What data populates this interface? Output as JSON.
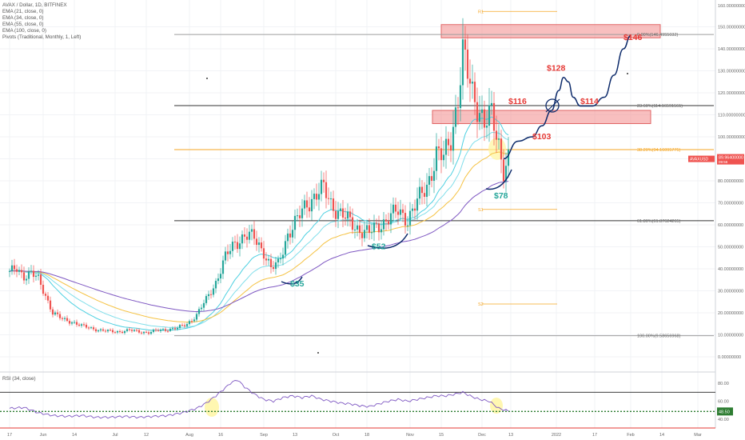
{
  "legend": {
    "title": "AVAX / Dollar, 1D, BITFINEX",
    "indicators": [
      "EMA (21, close, 0)",
      "EMA (34, close, 0)",
      "EMA (55, close, 0)",
      "EMA (100, close, 0)",
      "Pivots (Traditional, Monthly, 1, Left)"
    ]
  },
  "colors": {
    "bull": "#26a69a",
    "bear": "#ef5350",
    "ema21": "#4dd0e1",
    "ema34": "#80deea",
    "ema55": "#f5c242",
    "ema100": "#7e57c2",
    "fib_orange": "#f5a623",
    "fib_dark": "#333333",
    "zone": "#f28b8b",
    "annot_red": "#e53935",
    "annot_green": "#26a69a",
    "path_blue": "#0d2b6b",
    "rsi_line": "#7e57c2",
    "highlight": "#fff59d"
  },
  "chart_data": {
    "type": "candlestick",
    "symbol": "AVAXUSD",
    "y_axis": {
      "range": [
        0,
        160
      ],
      "ticks": [
        {
          "v": 150,
          "label": "150.00000000"
        },
        {
          "v": 140,
          "label": "140.00000000"
        },
        {
          "v": 130,
          "label": "130.00000000"
        },
        {
          "v": 120,
          "label": "120.00000000"
        },
        {
          "v": 110,
          "label": "110.00000000"
        },
        {
          "v": 100,
          "label": "100.00000000"
        },
        {
          "v": 90,
          "label": "90.00000000"
        },
        {
          "v": 80,
          "label": "80.00000000"
        },
        {
          "v": 70,
          "label": "70.00000000"
        },
        {
          "v": 60,
          "label": "60.00000000"
        },
        {
          "v": 50,
          "label": "50.00000000"
        },
        {
          "v": 40,
          "label": "40.00000000"
        },
        {
          "v": 30,
          "label": "30.00000000"
        },
        {
          "v": 20,
          "label": "20.00000000"
        },
        {
          "v": 10,
          "label": "10.00000000"
        },
        {
          "v": 0,
          "label": "0.00000000"
        }
      ],
      "top_label": "160.00000000"
    },
    "x_axis": {
      "ticks": [
        {
          "day": 0,
          "label": "17"
        },
        {
          "day": 14,
          "label": "Jun"
        },
        {
          "day": 27,
          "label": "14"
        },
        {
          "day": 44,
          "label": "Jul"
        },
        {
          "day": 57,
          "label": "12"
        },
        {
          "day": 75,
          "label": "Aug"
        },
        {
          "day": 88,
          "label": "16"
        },
        {
          "day": 106,
          "label": "Sep"
        },
        {
          "day": 119,
          "label": "13"
        },
        {
          "day": 136,
          "label": "Oct"
        },
        {
          "day": 149,
          "label": "18"
        },
        {
          "day": 167,
          "label": "Nov"
        },
        {
          "day": 180,
          "label": "15"
        },
        {
          "day": 197,
          "label": "Dec"
        },
        {
          "day": 209,
          "label": "13"
        },
        {
          "day": 228,
          "label": "2022"
        },
        {
          "day": 244,
          "label": "17"
        },
        {
          "day": 259,
          "label": "Feb"
        },
        {
          "day": 272,
          "label": "14"
        },
        {
          "day": 287,
          "label": "Mar"
        }
      ]
    },
    "price_anchors": [
      [
        0,
        38
      ],
      [
        3,
        40
      ],
      [
        6,
        37
      ],
      [
        9,
        38
      ],
      [
        12,
        35
      ],
      [
        15,
        28
      ],
      [
        18,
        20
      ],
      [
        22,
        17
      ],
      [
        26,
        16
      ],
      [
        30,
        14
      ],
      [
        34,
        13
      ],
      [
        38,
        12
      ],
      [
        42,
        11.5
      ],
      [
        46,
        11.5
      ],
      [
        50,
        12
      ],
      [
        54,
        11.5
      ],
      [
        58,
        11
      ],
      [
        62,
        12
      ],
      [
        66,
        12.5
      ],
      [
        70,
        13
      ],
      [
        74,
        15
      ],
      [
        78,
        19
      ],
      [
        82,
        26
      ],
      [
        86,
        34
      ],
      [
        90,
        45
      ],
      [
        94,
        52
      ],
      [
        98,
        55
      ],
      [
        102,
        54
      ],
      [
        106,
        48
      ],
      [
        109,
        40
      ],
      [
        112,
        42
      ],
      [
        116,
        56
      ],
      [
        120,
        62
      ],
      [
        124,
        70
      ],
      [
        128,
        74
      ],
      [
        131,
        76
      ],
      [
        134,
        70
      ],
      [
        138,
        65
      ],
      [
        142,
        61
      ],
      [
        146,
        58
      ],
      [
        150,
        56
      ],
      [
        154,
        60
      ],
      [
        158,
        63
      ],
      [
        162,
        66
      ],
      [
        166,
        63
      ],
      [
        170,
        70
      ],
      [
        174,
        78
      ],
      [
        178,
        92
      ],
      [
        181,
        90
      ],
      [
        184,
        100
      ],
      [
        187,
        118
      ],
      [
        189,
        137
      ],
      [
        191,
        128
      ],
      [
        193,
        120
      ],
      [
        196,
        113
      ],
      [
        198,
        106
      ],
      [
        201,
        109
      ],
      [
        204,
        97
      ],
      [
        206,
        86
      ],
      [
        208,
        90
      ]
    ],
    "ema_final": {
      "ema21": 102,
      "ema34": 97,
      "ema55": 90,
      "ema100": 82
    },
    "fib_levels": [
      {
        "label": "0.00%(146.4955032)",
        "price": 146.5
      },
      {
        "label": "23.60%(114.16591561)",
        "price": 114.17
      },
      {
        "label": "38.20%(94.16095775)",
        "price": 94.16
      },
      {
        "label": "61.80%(61.87624265)",
        "price": 61.88
      },
      {
        "label": "100.00%(9.58656968)",
        "price": 9.59
      }
    ],
    "pivots": [
      {
        "label": "R1",
        "price": 157
      },
      {
        "label": "S1",
        "price": 67
      },
      {
        "label": "S2",
        "price": 24
      }
    ],
    "zones": [
      {
        "label": "upper",
        "top": 151,
        "bottom": 145
      },
      {
        "label": "lower",
        "top": 112,
        "bottom": 106
      }
    ],
    "annotations": [
      {
        "text": "$146",
        "price": 144,
        "day": 256,
        "color": "red"
      },
      {
        "text": "$128",
        "price": 130,
        "day": 224,
        "color": "red"
      },
      {
        "text": "$116",
        "price": 115,
        "day": 208,
        "color": "red"
      },
      {
        "text": "$114",
        "price": 115,
        "day": 238,
        "color": "red"
      },
      {
        "text": "$103",
        "price": 99,
        "day": 218,
        "color": "red"
      },
      {
        "text": "$78",
        "price": 72,
        "day": 202,
        "color": "green"
      },
      {
        "text": "$52",
        "price": 49,
        "day": 151,
        "color": "green"
      },
      {
        "text": "$35",
        "price": 32,
        "day": 117,
        "color": "green"
      }
    ],
    "projection_path": [
      [
        206,
        90
      ],
      [
        212,
        98
      ],
      [
        218,
        100
      ],
      [
        222,
        105
      ],
      [
        226,
        112
      ],
      [
        229,
        121
      ],
      [
        231,
        127
      ],
      [
        233,
        125
      ],
      [
        235,
        118
      ],
      [
        238,
        114
      ],
      [
        243,
        114
      ],
      [
        248,
        118
      ],
      [
        252,
        128
      ],
      [
        256,
        140
      ],
      [
        259,
        146
      ]
    ],
    "current_price": {
      "label": "AVAXUSD",
      "value": "89.96400000",
      "sub": "09:56"
    },
    "rsi": {
      "title": "RSI (34, close)",
      "range": [
        30,
        90
      ],
      "ticks": [
        {
          "v": 80,
          "label": "80.00"
        },
        {
          "v": 60,
          "label": "60.00"
        },
        {
          "v": 40,
          "label": "40.00"
        }
      ],
      "upper_band": 70,
      "lower_band": 30,
      "current": {
        "value": 48.5,
        "label": "48.50"
      },
      "anchors": [
        [
          0,
          52
        ],
        [
          6,
          53
        ],
        [
          12,
          47
        ],
        [
          18,
          44
        ],
        [
          24,
          43
        ],
        [
          30,
          44
        ],
        [
          36,
          42
        ],
        [
          42,
          42
        ],
        [
          48,
          43
        ],
        [
          54,
          42
        ],
        [
          60,
          43
        ],
        [
          66,
          44
        ],
        [
          72,
          47
        ],
        [
          78,
          52
        ],
        [
          82,
          58
        ],
        [
          86,
          66
        ],
        [
          90,
          75
        ],
        [
          92,
          80
        ],
        [
          95,
          84
        ],
        [
          98,
          76
        ],
        [
          102,
          68
        ],
        [
          106,
          62
        ],
        [
          110,
          60
        ],
        [
          114,
          64
        ],
        [
          118,
          66
        ],
        [
          122,
          64
        ],
        [
          126,
          66
        ],
        [
          130,
          62
        ],
        [
          134,
          60
        ],
        [
          138,
          58
        ],
        [
          142,
          57
        ],
        [
          146,
          55
        ],
        [
          150,
          54
        ],
        [
          154,
          57
        ],
        [
          158,
          60
        ],
        [
          162,
          62
        ],
        [
          166,
          60
        ],
        [
          170,
          62
        ],
        [
          174,
          64
        ],
        [
          178,
          66
        ],
        [
          182,
          66
        ],
        [
          186,
          68
        ],
        [
          189,
          70
        ],
        [
          192,
          66
        ],
        [
          196,
          62
        ],
        [
          200,
          60
        ],
        [
          204,
          52
        ],
        [
          208,
          49
        ]
      ]
    }
  }
}
